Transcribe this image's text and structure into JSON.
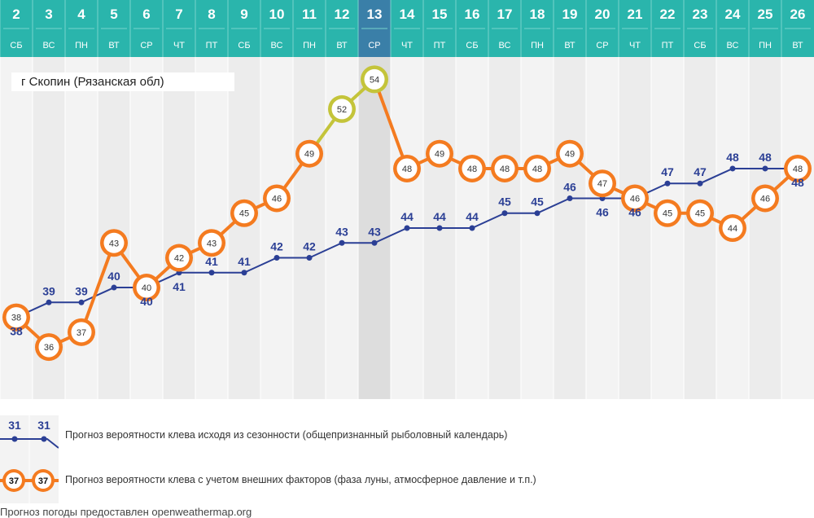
{
  "location": "г Скопин (Рязанская обл)",
  "chart_data": {
    "type": "line",
    "categories": [
      "2",
      "3",
      "4",
      "5",
      "6",
      "7",
      "8",
      "9",
      "10",
      "11",
      "12",
      "13",
      "14",
      "15",
      "16",
      "17",
      "18",
      "19",
      "20",
      "21",
      "22",
      "23",
      "24",
      "25",
      "26"
    ],
    "weekdays": [
      "СБ",
      "ВС",
      "ПН",
      "ВТ",
      "СР",
      "ЧТ",
      "ПТ",
      "СБ",
      "ВС",
      "ПН",
      "ВТ",
      "СР",
      "ЧТ",
      "ПТ",
      "СБ",
      "ВС",
      "ПН",
      "ВТ",
      "СР",
      "ЧТ",
      "ПТ",
      "СБ",
      "ВС",
      "ПН",
      "ВТ"
    ],
    "highlight_index": 11,
    "series": [
      {
        "name": "Прогноз вероятности клева исходя из сезонности (общепризнанный рыболовный календарь)",
        "values": [
          38,
          39,
          39,
          40,
          40,
          41,
          41,
          41,
          42,
          42,
          43,
          43,
          44,
          44,
          44,
          45,
          45,
          46,
          46,
          46,
          47,
          47,
          48,
          48,
          48
        ]
      },
      {
        "name": "Прогноз вероятности клева с учетом внешних факторов (фаза луны, атмосферное давление и т.п.)",
        "values": [
          38,
          36,
          37,
          43,
          40,
          42,
          43,
          45,
          46,
          49,
          52,
          54,
          48,
          49,
          48,
          48,
          48,
          49,
          47,
          46,
          45,
          45,
          44,
          46,
          48
        ]
      }
    ],
    "ylim": [
      32.5,
      55.5
    ]
  },
  "legend": {
    "seasonal": {
      "icon_values": [
        "31",
        "31"
      ],
      "text": "Прогноз вероятности клева исходя из сезонности (общепризнанный рыболовный календарь)"
    },
    "external": {
      "icon_values": [
        "37",
        "37"
      ],
      "text": "Прогноз вероятности клева с учетом внешних факторов (фаза луны, атмосферное давление и т.п.)"
    }
  },
  "source": "Прогноз погоды предоставлен openweathermap.org",
  "colors": {
    "header": "#2ab5ac",
    "header_highlight": "#3a7fa8",
    "header_border": "#78d3cd",
    "blue": "#2b3f95",
    "orange": "#f47b20",
    "olive": "#c4c43a",
    "col_light": "#f3f3f3",
    "col_dark": "#ececec",
    "col_highlight": "#dddddd"
  }
}
